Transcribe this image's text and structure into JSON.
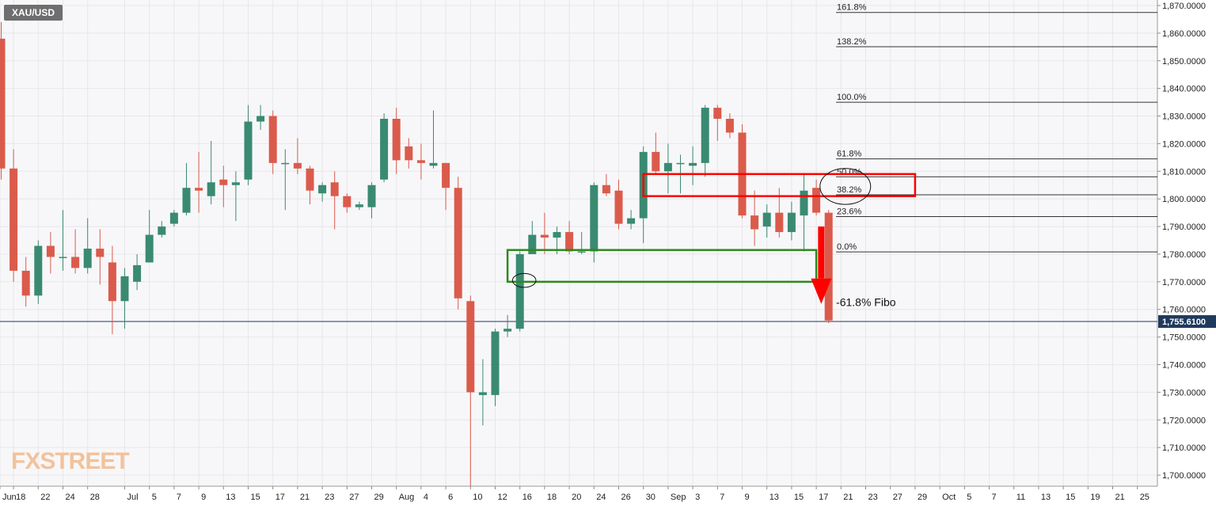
{
  "symbol": "XAU/USD",
  "watermark": "FXSTREET",
  "colors": {
    "bull": "#3a8a72",
    "bear": "#db5b4b",
    "fib_line": "#333333",
    "annotation_red": "#ff0000",
    "annotation_green": "#2c8a1a",
    "price_label_bg": "#203a5c",
    "grid": "#e7e7ea",
    "background": "#f7f7f9"
  },
  "chart_data": {
    "type": "candlestick",
    "ylim": [
      1696,
      1872
    ],
    "y_ticks": [
      "1,700.0000",
      "1,710.0000",
      "1,720.0000",
      "1,730.0000",
      "1,740.0000",
      "1,750.0000",
      "1,760.0000",
      "1,770.0000",
      "1,780.0000",
      "1,790.0000",
      "1,800.0000",
      "1,810.0000",
      "1,820.0000",
      "1,830.0000",
      "1,840.0000",
      "1,850.0000",
      "1,860.0000",
      "1,870.0000"
    ],
    "y_tick_values": [
      1700,
      1710,
      1720,
      1730,
      1740,
      1750,
      1760,
      1770,
      1780,
      1790,
      1800,
      1810,
      1820,
      1830,
      1840,
      1850,
      1860,
      1870
    ],
    "x_ticks": [
      {
        "label": "Jun",
        "i": -0.1
      },
      {
        "label": "18",
        "i": 1
      },
      {
        "label": "22",
        "i": 3
      },
      {
        "label": "24",
        "i": 5
      },
      {
        "label": "28",
        "i": 7
      },
      {
        "label": "Jul",
        "i": 10
      },
      {
        "label": "5",
        "i": 12
      },
      {
        "label": "7",
        "i": 14
      },
      {
        "label": "9",
        "i": 16
      },
      {
        "label": "13",
        "i": 18
      },
      {
        "label": "15",
        "i": 20
      },
      {
        "label": "17",
        "i": 22
      },
      {
        "label": "21",
        "i": 24
      },
      {
        "label": "23",
        "i": 26
      },
      {
        "label": "27",
        "i": 28
      },
      {
        "label": "29",
        "i": 30
      },
      {
        "label": "Aug",
        "i": 32
      },
      {
        "label": "4",
        "i": 34
      },
      {
        "label": "6",
        "i": 36
      },
      {
        "label": "10",
        "i": 38
      },
      {
        "label": "12",
        "i": 40
      },
      {
        "label": "16",
        "i": 42
      },
      {
        "label": "18",
        "i": 44
      },
      {
        "label": "20",
        "i": 46
      },
      {
        "label": "24",
        "i": 48
      },
      {
        "label": "26",
        "i": 50
      },
      {
        "label": "30",
        "i": 52
      },
      {
        "label": "Sep",
        "i": 54
      },
      {
        "label": "3",
        "i": 56
      },
      {
        "label": "7",
        "i": 58
      },
      {
        "label": "9",
        "i": 60
      },
      {
        "label": "13",
        "i": 62
      },
      {
        "label": "15",
        "i": 64
      },
      {
        "label": "17",
        "i": 66
      },
      {
        "label": "21",
        "i": 68
      },
      {
        "label": "23",
        "i": 70
      },
      {
        "label": "27",
        "i": 72
      },
      {
        "label": "29",
        "i": 74
      },
      {
        "label": "Oct",
        "i": 76
      },
      {
        "label": "5",
        "i": 78
      },
      {
        "label": "7",
        "i": 80
      },
      {
        "label": "11",
        "i": 82
      },
      {
        "label": "13",
        "i": 84
      },
      {
        "label": "15",
        "i": 86
      },
      {
        "label": "19",
        "i": 88
      },
      {
        "label": "21",
        "i": 90
      },
      {
        "label": "25",
        "i": 92
      }
    ],
    "candles": [
      {
        "o": 1858,
        "h": 1864,
        "l": 1807,
        "c": 1811
      },
      {
        "o": 1811,
        "h": 1818,
        "l": 1770,
        "c": 1774
      },
      {
        "o": 1774,
        "h": 1779,
        "l": 1761,
        "c": 1765
      },
      {
        "o": 1765,
        "h": 1785,
        "l": 1762,
        "c": 1783
      },
      {
        "o": 1783,
        "h": 1788,
        "l": 1773,
        "c": 1779
      },
      {
        "o": 1779,
        "h": 1796,
        "l": 1774,
        "c": 1779
      },
      {
        "o": 1779,
        "h": 1789,
        "l": 1773,
        "c": 1775
      },
      {
        "o": 1775,
        "h": 1793,
        "l": 1773,
        "c": 1782
      },
      {
        "o": 1782,
        "h": 1789,
        "l": 1769,
        "c": 1779
      },
      {
        "o": 1777,
        "h": 1783,
        "l": 1751,
        "c": 1763
      },
      {
        "o": 1763,
        "h": 1775,
        "l": 1753,
        "c": 1772
      },
      {
        "o": 1770,
        "h": 1780,
        "l": 1767,
        "c": 1776
      },
      {
        "o": 1777,
        "h": 1796,
        "l": 1777,
        "c": 1787
      },
      {
        "o": 1787,
        "h": 1792,
        "l": 1786,
        "c": 1790
      },
      {
        "o": 1791,
        "h": 1796,
        "l": 1790,
        "c": 1795
      },
      {
        "o": 1795,
        "h": 1813,
        "l": 1794,
        "c": 1804
      },
      {
        "o": 1804,
        "h": 1817,
        "l": 1795,
        "c": 1803
      },
      {
        "o": 1801,
        "h": 1821,
        "l": 1798,
        "c": 1806
      },
      {
        "o": 1807,
        "h": 1812,
        "l": 1797,
        "c": 1805
      },
      {
        "o": 1805,
        "h": 1810,
        "l": 1792,
        "c": 1806
      },
      {
        "o": 1807,
        "h": 1834,
        "l": 1805,
        "c": 1828
      },
      {
        "o": 1828,
        "h": 1834,
        "l": 1825,
        "c": 1830
      },
      {
        "o": 1830,
        "h": 1832,
        "l": 1809,
        "c": 1813
      },
      {
        "o": 1813,
        "h": 1818,
        "l": 1796,
        "c": 1813
      },
      {
        "o": 1813,
        "h": 1822,
        "l": 1809,
        "c": 1811
      },
      {
        "o": 1811,
        "h": 1812,
        "l": 1798,
        "c": 1803
      },
      {
        "o": 1802,
        "h": 1806,
        "l": 1799,
        "c": 1805
      },
      {
        "o": 1806,
        "h": 1810,
        "l": 1789,
        "c": 1801
      },
      {
        "o": 1801,
        "h": 1802,
        "l": 1795,
        "c": 1797
      },
      {
        "o": 1797,
        "h": 1799,
        "l": 1796,
        "c": 1798
      },
      {
        "o": 1797,
        "h": 1806,
        "l": 1793,
        "c": 1805
      },
      {
        "o": 1807,
        "h": 1831,
        "l": 1806,
        "c": 1829
      },
      {
        "o": 1829,
        "h": 1833,
        "l": 1809,
        "c": 1814
      },
      {
        "o": 1819,
        "h": 1822,
        "l": 1811,
        "c": 1814
      },
      {
        "o": 1814,
        "h": 1820,
        "l": 1807,
        "c": 1813
      },
      {
        "o": 1812,
        "h": 1832,
        "l": 1811,
        "c": 1813
      },
      {
        "o": 1813,
        "h": 1813,
        "l": 1796,
        "c": 1804
      },
      {
        "o": 1804,
        "h": 1808,
        "l": 1760,
        "c": 1764
      },
      {
        "o": 1763,
        "h": 1765,
        "l": 1696,
        "c": 1730
      },
      {
        "o": 1729,
        "h": 1742,
        "l": 1718,
        "c": 1730
      },
      {
        "o": 1729,
        "h": 1753,
        "l": 1725,
        "c": 1752
      },
      {
        "o": 1752,
        "h": 1758,
        "l": 1750,
        "c": 1753
      },
      {
        "o": 1753,
        "h": 1781,
        "l": 1752,
        "c": 1780
      },
      {
        "o": 1780,
        "h": 1792,
        "l": 1780,
        "c": 1787
      },
      {
        "o": 1787,
        "h": 1795,
        "l": 1780,
        "c": 1786
      },
      {
        "o": 1786,
        "h": 1790,
        "l": 1780,
        "c": 1788
      },
      {
        "o": 1788,
        "h": 1792,
        "l": 1780,
        "c": 1781
      },
      {
        "o": 1781,
        "h": 1788,
        "l": 1780,
        "c": 1781
      },
      {
        "o": 1781,
        "h": 1806,
        "l": 1777,
        "c": 1805
      },
      {
        "o": 1805,
        "h": 1809,
        "l": 1801,
        "c": 1802
      },
      {
        "o": 1803,
        "h": 1807,
        "l": 1789,
        "c": 1791
      },
      {
        "o": 1791,
        "h": 1796,
        "l": 1789,
        "c": 1793
      },
      {
        "o": 1793,
        "h": 1819,
        "l": 1784,
        "c": 1817
      },
      {
        "o": 1817,
        "h": 1824,
        "l": 1809,
        "c": 1810
      },
      {
        "o": 1810,
        "h": 1820,
        "l": 1802,
        "c": 1813
      },
      {
        "o": 1813,
        "h": 1816,
        "l": 1802,
        "c": 1813
      },
      {
        "o": 1812,
        "h": 1819,
        "l": 1805,
        "c": 1813
      },
      {
        "o": 1813,
        "h": 1834,
        "l": 1808,
        "c": 1833
      },
      {
        "o": 1833,
        "h": 1834,
        "l": 1821,
        "c": 1829
      },
      {
        "o": 1829,
        "h": 1831,
        "l": 1822,
        "c": 1824
      },
      {
        "o": 1824,
        "h": 1827,
        "l": 1793,
        "c": 1794
      },
      {
        "o": 1794,
        "h": 1803,
        "l": 1783,
        "c": 1789
      },
      {
        "o": 1790,
        "h": 1798,
        "l": 1786,
        "c": 1795
      },
      {
        "o": 1795,
        "h": 1804,
        "l": 1786,
        "c": 1788
      },
      {
        "o": 1788,
        "h": 1799,
        "l": 1785,
        "c": 1795
      },
      {
        "o": 1794,
        "h": 1809,
        "l": 1781,
        "c": 1803
      },
      {
        "o": 1804,
        "h": 1807,
        "l": 1794,
        "c": 1795
      },
      {
        "o": 1795,
        "h": 1796,
        "l": 1755,
        "c": 1756
      }
    ],
    "current_price": 1755.61,
    "current_price_label": "1,755.6100",
    "fib_levels": [
      {
        "label": "161.8%",
        "price": 1867.5
      },
      {
        "label": "138.2%",
        "price": 1855.1
      },
      {
        "label": "100.0%",
        "price": 1835.0
      },
      {
        "label": "61.8%",
        "price": 1814.5
      },
      {
        "label": "50.0%",
        "price": 1808.0
      },
      {
        "label": "38.2%",
        "price": 1801.5
      },
      {
        "label": "23.6%",
        "price": 1793.6
      },
      {
        "label": "0.0%",
        "price": 1780.8
      }
    ],
    "annotations": {
      "fibo_target_label": "-61.8% Fibo",
      "red_box": {
        "i0": 52,
        "i1": 74,
        "p_top": 1809,
        "p_bot": 1801
      },
      "green_box": {
        "i0": 41,
        "i1": 66,
        "p_top": 1781.5,
        "p_bot": 1770
      },
      "oval_fib": {
        "i0": 66.3,
        "i1": 70.4,
        "p_top": 1811,
        "p_bot": 1798
      },
      "oval_green": {
        "i0": 41.4,
        "i1": 43.3,
        "p_top": 1773,
        "p_bot": 1768
      },
      "arrow": {
        "i": 66.4,
        "p_top": 1790,
        "p_bot": 1762
      }
    }
  }
}
